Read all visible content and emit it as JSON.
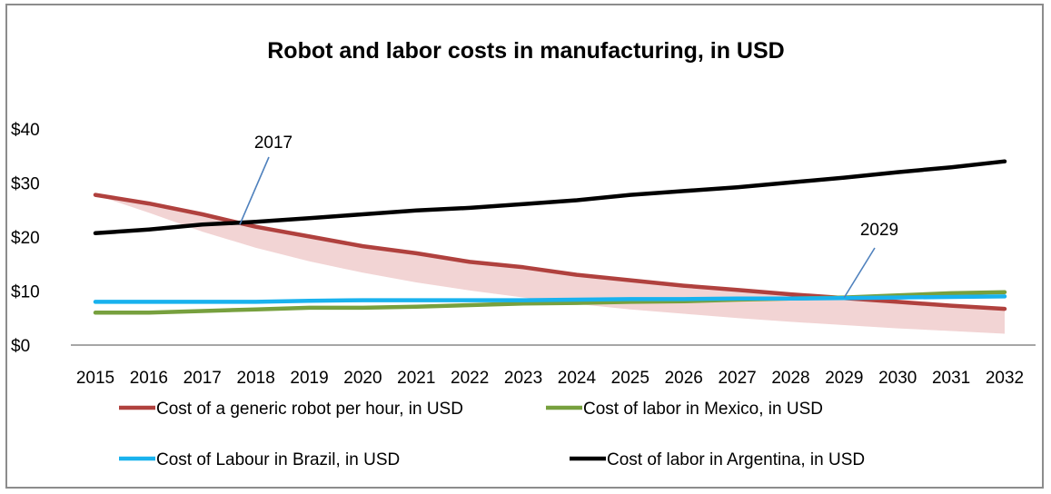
{
  "chart_data": {
    "type": "line",
    "title": "Robot and labor costs in manufacturing, in USD",
    "xlabel": "",
    "ylabel": "",
    "y_tick_labels": [
      "$0",
      "$10",
      "$20",
      "$30",
      "$40"
    ],
    "y_ticks": [
      0,
      10,
      20,
      30,
      40
    ],
    "ylim": [
      0,
      40
    ],
    "categories": [
      "2015",
      "2016",
      "2017",
      "2018",
      "2019",
      "2020",
      "2021",
      "2022",
      "2023",
      "2024",
      "2025",
      "2026",
      "2027",
      "2028",
      "2029",
      "2030",
      "2031",
      "2032"
    ],
    "grid": false,
    "legend_placement": "bottom",
    "series": [
      {
        "name": "Cost of a generic robot per hour, in USD",
        "color": "#b0413e",
        "values": [
          27.8,
          26.2,
          24.2,
          21.9,
          20.1,
          18.3,
          17.0,
          15.4,
          14.4,
          13.0,
          12.0,
          11.0,
          10.2,
          9.4,
          8.7,
          8.0,
          7.3,
          6.7
        ]
      },
      {
        "name": "Cost of labor in Mexico, in USD",
        "color": "#77a03e",
        "values": [
          6.0,
          6.0,
          6.3,
          6.6,
          6.9,
          6.9,
          7.1,
          7.4,
          7.7,
          7.8,
          8.0,
          8.1,
          8.4,
          8.6,
          8.8,
          9.2,
          9.6,
          9.8
        ]
      },
      {
        "name": "Cost of Labour in Brazil, in USD",
        "color": "#19b2ee",
        "values": [
          8.0,
          8.0,
          8.0,
          8.0,
          8.2,
          8.3,
          8.3,
          8.3,
          8.3,
          8.4,
          8.5,
          8.5,
          8.6,
          8.6,
          8.7,
          8.8,
          8.9,
          9.0
        ]
      },
      {
        "name": "Cost of labor in Argentina, in USD",
        "color": "#000000",
        "values": [
          20.7,
          21.4,
          22.3,
          22.8,
          23.5,
          24.2,
          24.9,
          25.4,
          26.1,
          26.8,
          27.8,
          28.5,
          29.2,
          30.1,
          31.0,
          32.0,
          32.9,
          34.0
        ]
      }
    ],
    "band": {
      "color": "#f2d4d4",
      "lower": [
        27.8,
        24.5,
        21.0,
        18.0,
        15.5,
        13.4,
        11.6,
        10.1,
        8.8,
        7.6,
        6.6,
        5.8,
        5.0,
        4.3,
        3.7,
        3.1,
        2.6,
        2.1
      ]
    },
    "annotations": [
      {
        "label": "2017",
        "target_x": 2017.7,
        "target_y": 22.3
      },
      {
        "label": "2029",
        "target_x": 2029.0,
        "target_y": 8.8
      }
    ],
    "annotation_color": "#4f81bd"
  }
}
